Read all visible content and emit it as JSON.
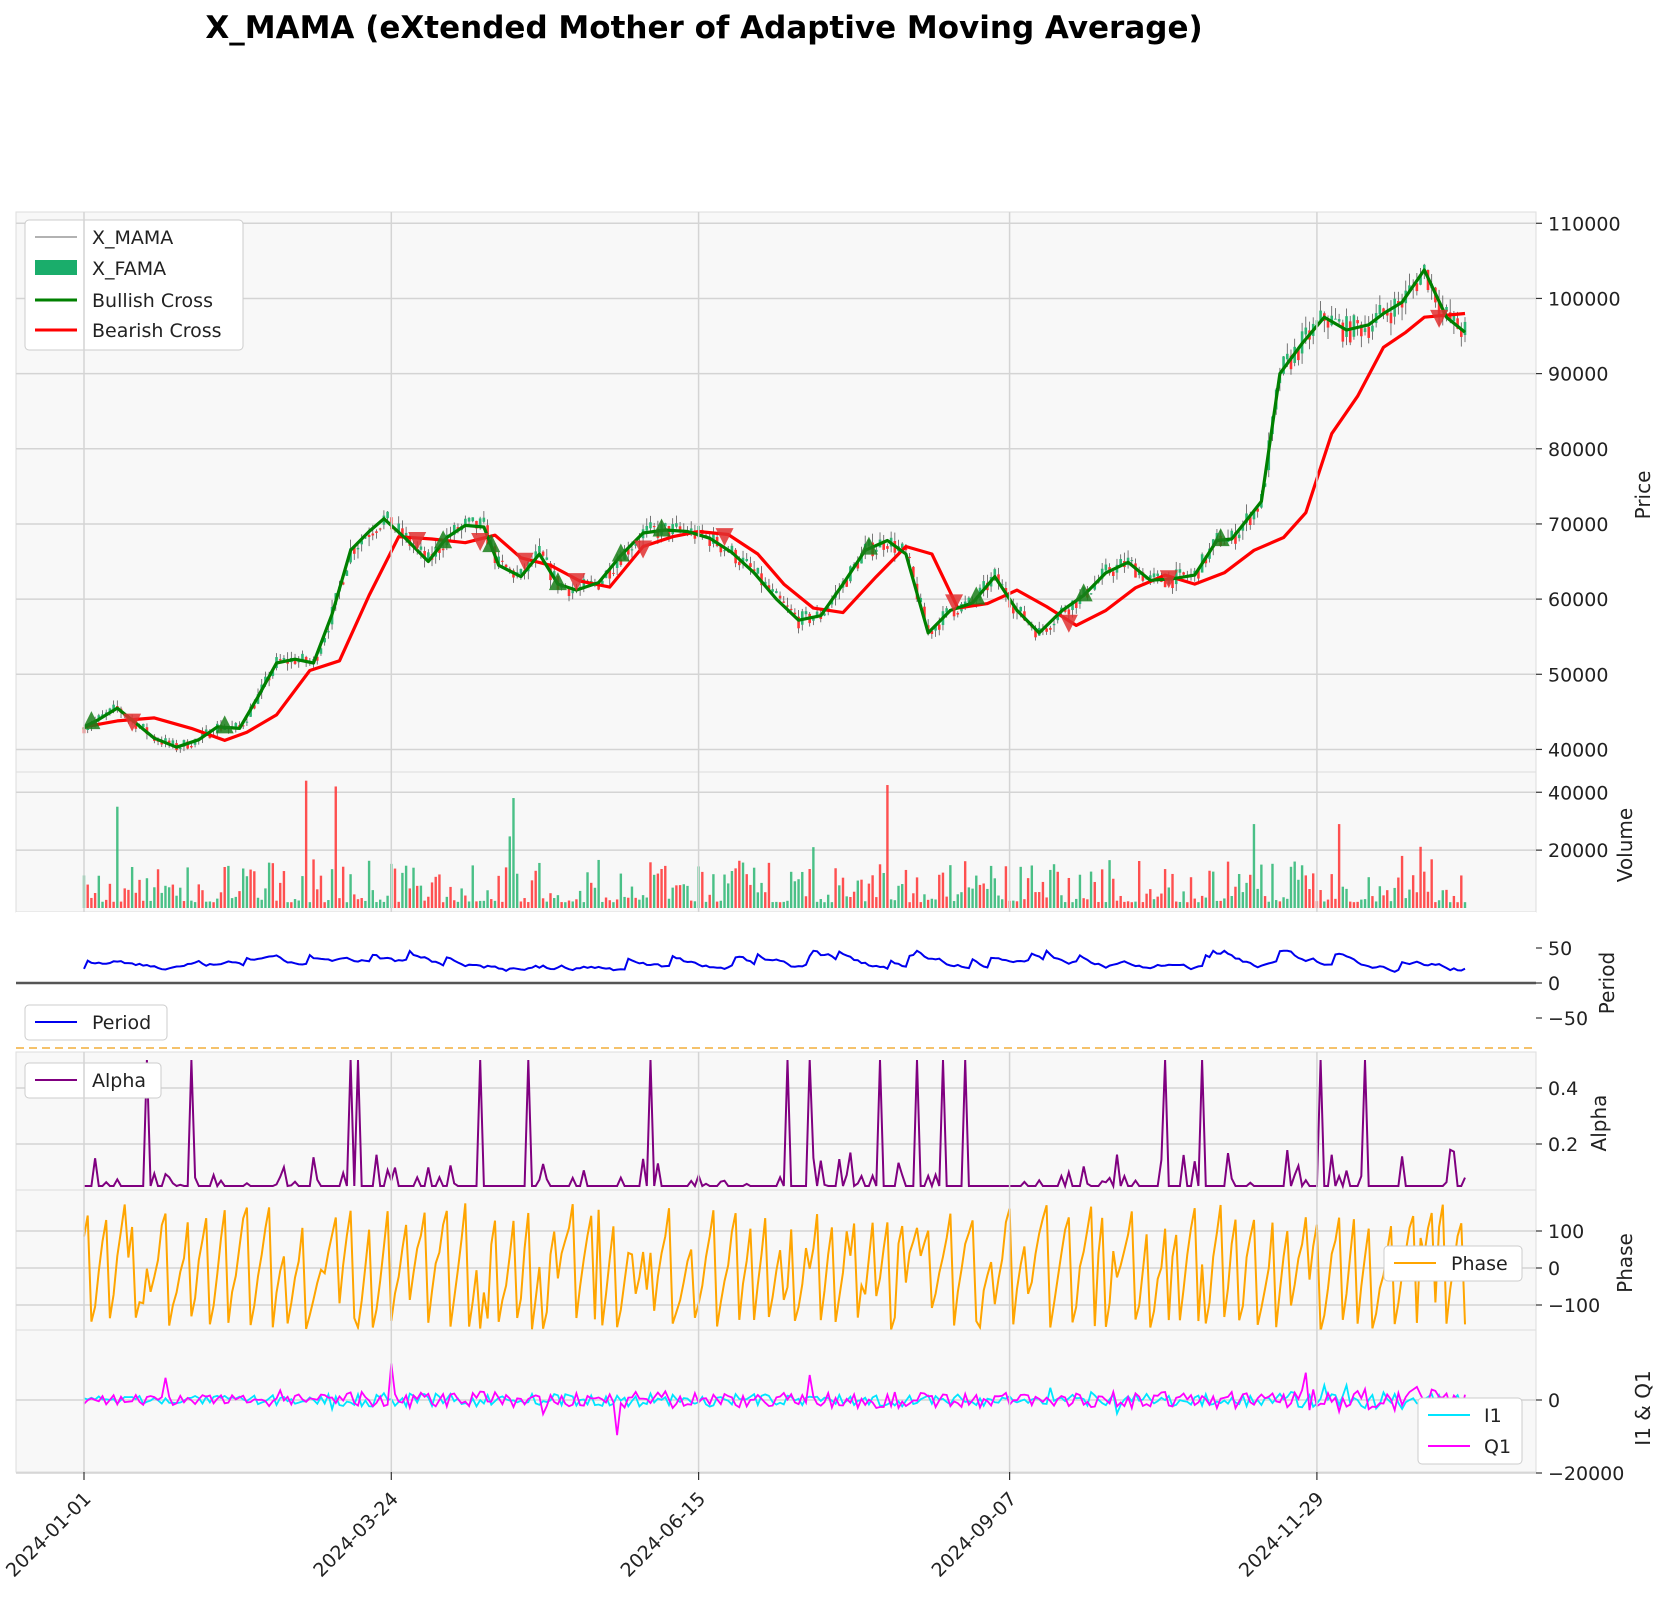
{
  "title": "X_MAMA (eXtended Mother of Adaptive Moving Average)",
  "colors": {
    "mama": "#008000",
    "fama": "#ff0000",
    "bull": "#ffffff",
    "bear": "#ff3333",
    "bull_marker": "#1a7f1a",
    "bear_marker": "#e03030",
    "period": "#0000ee",
    "alpha": "#800080",
    "phase": "#ffa500",
    "i1": "#00e5ff",
    "q1": "#ff00ff",
    "volume_up": "#2bb673",
    "volume_down": "#ff3333",
    "threshold": "#f5c26b",
    "zero_line": "#555555"
  },
  "chart_data": [
    {
      "type": "line",
      "panel": "price",
      "ylabel": "Price",
      "ylim": [
        37000,
        111500
      ],
      "yticks": [
        40000,
        50000,
        60000,
        70000,
        80000,
        90000,
        100000,
        110000
      ],
      "xlim": [
        "2024-01-01",
        "2025-01-23"
      ],
      "xticks": [
        "2024-01-01",
        "2024-03-24",
        "2024-06-15",
        "2024-09-07",
        "2024-11-29"
      ],
      "legend": [
        "X_MAMA",
        "X_FAMA",
        "Bullish Cross",
        "Bearish Cross"
      ],
      "legend_position": "top-left",
      "grid": true,
      "series": [
        {
          "name": "MAMA",
          "x": [
            "2024-01-01",
            "2024-01-05",
            "2024-01-10",
            "2024-01-15",
            "2024-01-20",
            "2024-01-26",
            "2024-02-01",
            "2024-02-06",
            "2024-02-12",
            "2024-02-17",
            "2024-02-22",
            "2024-02-27",
            "2024-03-03",
            "2024-03-08",
            "2024-03-13",
            "2024-03-18",
            "2024-03-22",
            "2024-03-28",
            "2024-04-03",
            "2024-04-08",
            "2024-04-13",
            "2024-04-18",
            "2024-04-22",
            "2024-04-28",
            "2024-05-03",
            "2024-05-08",
            "2024-05-13",
            "2024-05-19",
            "2024-05-25",
            "2024-05-31",
            "2024-06-06",
            "2024-06-12",
            "2024-06-18",
            "2024-06-24",
            "2024-06-30",
            "2024-07-06",
            "2024-07-12",
            "2024-07-18",
            "2024-07-24",
            "2024-07-30",
            "2024-08-05",
            "2024-08-10",
            "2024-08-16",
            "2024-08-22",
            "2024-08-28",
            "2024-09-03",
            "2024-09-09",
            "2024-09-15",
            "2024-09-21",
            "2024-09-27",
            "2024-10-03",
            "2024-10-09",
            "2024-10-15",
            "2024-10-21",
            "2024-10-27",
            "2024-11-02",
            "2024-11-06",
            "2024-11-10",
            "2024-11-14",
            "2024-11-19",
            "2024-11-25",
            "2024-12-01",
            "2024-12-07",
            "2024-12-13",
            "2024-12-17",
            "2024-12-22",
            "2024-12-28",
            "2025-01-03",
            "2025-01-08"
          ],
          "y": [
            43000,
            44000,
            45500,
            43500,
            41500,
            40300,
            41300,
            43000,
            42800,
            47000,
            51500,
            52000,
            51500,
            58000,
            66500,
            69000,
            70700,
            68000,
            65000,
            68200,
            69800,
            69600,
            64500,
            63000,
            66000,
            62000,
            61200,
            62200,
            65800,
            68800,
            69200,
            69000,
            68100,
            66200,
            63500,
            60000,
            57200,
            57800,
            62000,
            66500,
            67800,
            66000,
            55500,
            58500,
            59500,
            63000,
            58500,
            55500,
            58400,
            60500,
            63500,
            64900,
            62500,
            62700,
            63200,
            67800,
            68000,
            70500,
            73000,
            90000,
            94000,
            97500,
            95800,
            96500,
            98000,
            99500,
            103800,
            97500,
            95500
          ]
        },
        {
          "name": "FAMA",
          "x": [
            "2024-01-01",
            "2024-01-10",
            "2024-01-20",
            "2024-01-30",
            "2024-02-08",
            "2024-02-14",
            "2024-02-22",
            "2024-03-02",
            "2024-03-10",
            "2024-03-18",
            "2024-03-26",
            "2024-04-04",
            "2024-04-13",
            "2024-04-21",
            "2024-04-28",
            "2024-05-06",
            "2024-05-14",
            "2024-05-22",
            "2024-05-31",
            "2024-06-08",
            "2024-06-15",
            "2024-06-23",
            "2024-07-01",
            "2024-07-08",
            "2024-07-16",
            "2024-07-24",
            "2024-08-02",
            "2024-08-10",
            "2024-08-17",
            "2024-08-24",
            "2024-09-01",
            "2024-09-09",
            "2024-09-17",
            "2024-09-25",
            "2024-10-03",
            "2024-10-11",
            "2024-10-19",
            "2024-10-27",
            "2024-11-04",
            "2024-11-12",
            "2024-11-20",
            "2024-11-26",
            "2024-12-03",
            "2024-12-10",
            "2024-12-17",
            "2024-12-23",
            "2024-12-28",
            "2025-01-08"
          ],
          "y": [
            43000,
            43800,
            44200,
            42800,
            41200,
            42300,
            44600,
            50500,
            51800,
            60500,
            68300,
            68000,
            67500,
            68500,
            65500,
            64500,
            62400,
            61600,
            67000,
            68300,
            69000,
            68600,
            66000,
            62000,
            58800,
            58200,
            63000,
            67000,
            66000,
            58800,
            59400,
            61200,
            59000,
            56500,
            58500,
            61500,
            63200,
            62000,
            63500,
            66500,
            68200,
            71500,
            82000,
            87000,
            93500,
            95500,
            97500,
            98000
          ]
        }
      ],
      "bullish_cross_dates": [
        "2024-01-03",
        "2024-02-08",
        "2024-04-07",
        "2024-04-20",
        "2024-05-08",
        "2024-05-25",
        "2024-06-05",
        "2024-07-31",
        "2024-08-29",
        "2024-09-27",
        "2024-11-03"
      ],
      "bearish_cross_dates": [
        "2024-01-14",
        "2024-03-31",
        "2024-04-17",
        "2024-04-29",
        "2024-05-13",
        "2024-05-31",
        "2024-06-22",
        "2024-08-23",
        "2024-09-23",
        "2024-10-20",
        "2025-01-01"
      ]
    },
    {
      "type": "bar",
      "panel": "volume",
      "ylabel": "Volume",
      "ylim": [
        0,
        47000
      ],
      "yticks": [
        20000,
        40000
      ],
      "note_series": "daily volume bars, colored by up/down day",
      "spikes": [
        {
          "x": "2024-01-10",
          "y": 35000
        },
        {
          "x": "2024-03-01",
          "y": 44000
        },
        {
          "x": "2024-03-09",
          "y": 42000
        },
        {
          "x": "2024-04-26",
          "y": 38000
        },
        {
          "x": "2024-08-05",
          "y": 42500
        },
        {
          "x": "2024-11-12",
          "y": 29000
        },
        {
          "x": "2024-12-05",
          "y": 29000
        },
        {
          "x": "2024-12-22",
          "y": 18000
        }
      ]
    },
    {
      "type": "line",
      "panel": "period",
      "ylabel": "Period",
      "ylim": [
        -72,
        75
      ],
      "yticks": [
        -50,
        0,
        50
      ],
      "legend": [
        "Period"
      ],
      "legend_position": "lower-left",
      "threshold_lines": [
        75,
        -72
      ],
      "zero_line": 0,
      "series": [
        {
          "name": "Period",
          "range": [
            12,
            48
          ]
        }
      ]
    },
    {
      "type": "line",
      "panel": "alpha",
      "ylabel": "Alpha",
      "ylim": [
        0.0,
        0.5
      ],
      "yticks": [
        0.2,
        0.4
      ],
      "legend": [
        "Alpha"
      ],
      "legend_position": "top-left",
      "series": [
        {
          "name": "Alpha",
          "range": [
            0.05,
            0.5
          ]
        }
      ]
    },
    {
      "type": "line",
      "panel": "phase",
      "ylabel": "Phase",
      "ylim": [
        -180,
        180
      ],
      "yticks": [
        -100,
        0,
        100
      ],
      "legend": [
        "Phase"
      ],
      "legend_position": "right",
      "series": [
        {
          "name": "Phase",
          "range": [
            -170,
            175
          ]
        }
      ]
    },
    {
      "type": "line",
      "panel": "i1q1",
      "ylabel": "I1 & Q1",
      "ylim": [
        -20000,
        16000
      ],
      "yticks": [
        -20000,
        0
      ],
      "legend": [
        "I1",
        "Q1"
      ],
      "legend_position": "lower-right",
      "series": [
        {
          "name": "I1"
        },
        {
          "name": "Q1"
        }
      ]
    }
  ]
}
